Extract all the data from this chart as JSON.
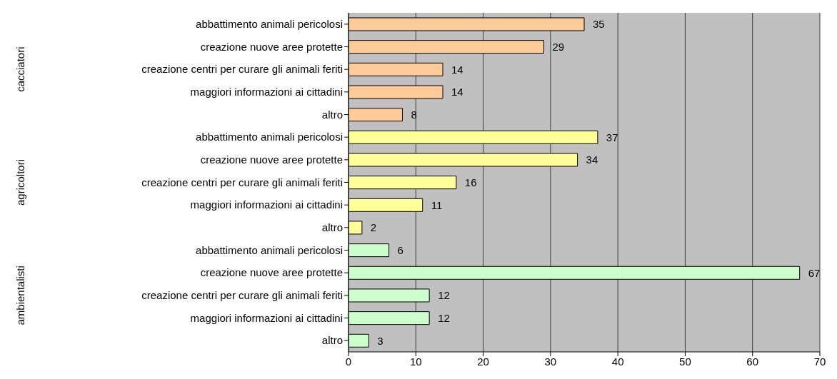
{
  "chart_data": {
    "type": "bar",
    "orientation": "horizontal",
    "categories": [
      "abbattimento animali pericolosi",
      "creazione nuove aree protette",
      "creazione centri per curare gli animali feriti",
      "maggiori informazioni ai cittadini",
      "altro",
      "abbattimento animali pericolosi",
      "creazione nuove aree protette",
      "creazione centri per curare gli animali feriti",
      "maggiori informazioni ai cittadini",
      "altro",
      "abbattimento animali pericolosi",
      "creazione nuove aree protette",
      "creazione centri per curare gli animali feriti",
      "maggiori informazioni ai cittadini",
      "altro"
    ],
    "values": [
      35,
      29,
      14,
      14,
      8,
      37,
      34,
      16,
      11,
      2,
      6,
      67,
      12,
      12,
      3
    ],
    "colors": [
      "#ffcc99",
      "#ffcc99",
      "#ffcc99",
      "#ffcc99",
      "#ffcc99",
      "#ffff99",
      "#ffff99",
      "#ffff99",
      "#ffff99",
      "#ffff99",
      "#ccffcc",
      "#ccffcc",
      "#ccffcc",
      "#ccffcc",
      "#ccffcc"
    ],
    "annotations": [
      "cacciatori",
      "agricoltori",
      "ambientalisti"
    ],
    "xlim": [
      0,
      70
    ],
    "xticks": [
      0,
      10,
      20,
      30,
      40,
      50,
      60,
      70
    ],
    "grid": "x",
    "data_labels": true
  }
}
